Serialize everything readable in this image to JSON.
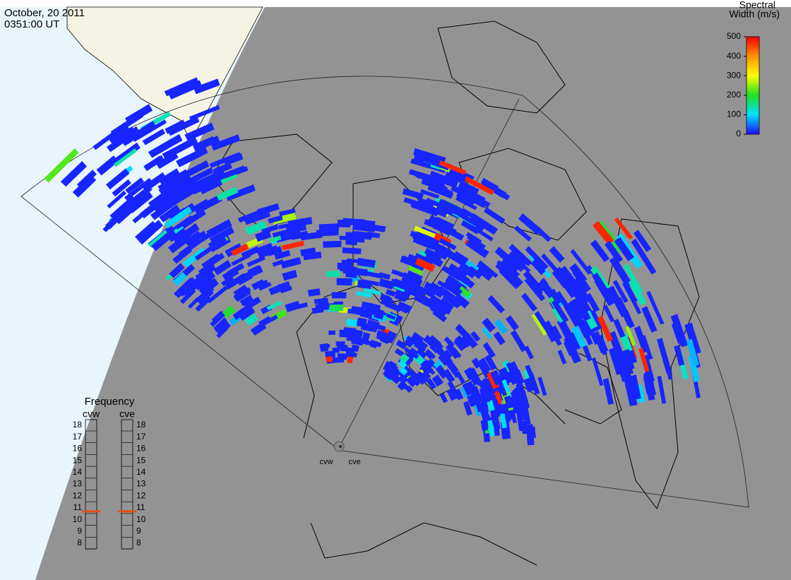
{
  "header": {
    "date": "October, 20 2011",
    "time": "0351:00 UT"
  },
  "colorbar": {
    "title": [
      "Spectral",
      "Width (m/s)"
    ],
    "range": [
      0,
      500
    ],
    "ticks": [
      0,
      100,
      200,
      300,
      400,
      500
    ],
    "colors": [
      "#1a10ff",
      "#00e0ff",
      "#20e020",
      "#ffff00",
      "#ff9000",
      "#ff0000"
    ]
  },
  "frequency": {
    "title": "Frequency",
    "range": [
      8,
      18
    ],
    "ticks": [
      8,
      9,
      10,
      11,
      12,
      13,
      14,
      15,
      16,
      17,
      18
    ],
    "radars": [
      {
        "name": "cvw",
        "value": 10.7,
        "color": "#e05018"
      },
      {
        "name": "cve",
        "value": 10.7,
        "color": "#e05018"
      }
    ]
  },
  "stations": [
    "cvw",
    "cve"
  ]
}
